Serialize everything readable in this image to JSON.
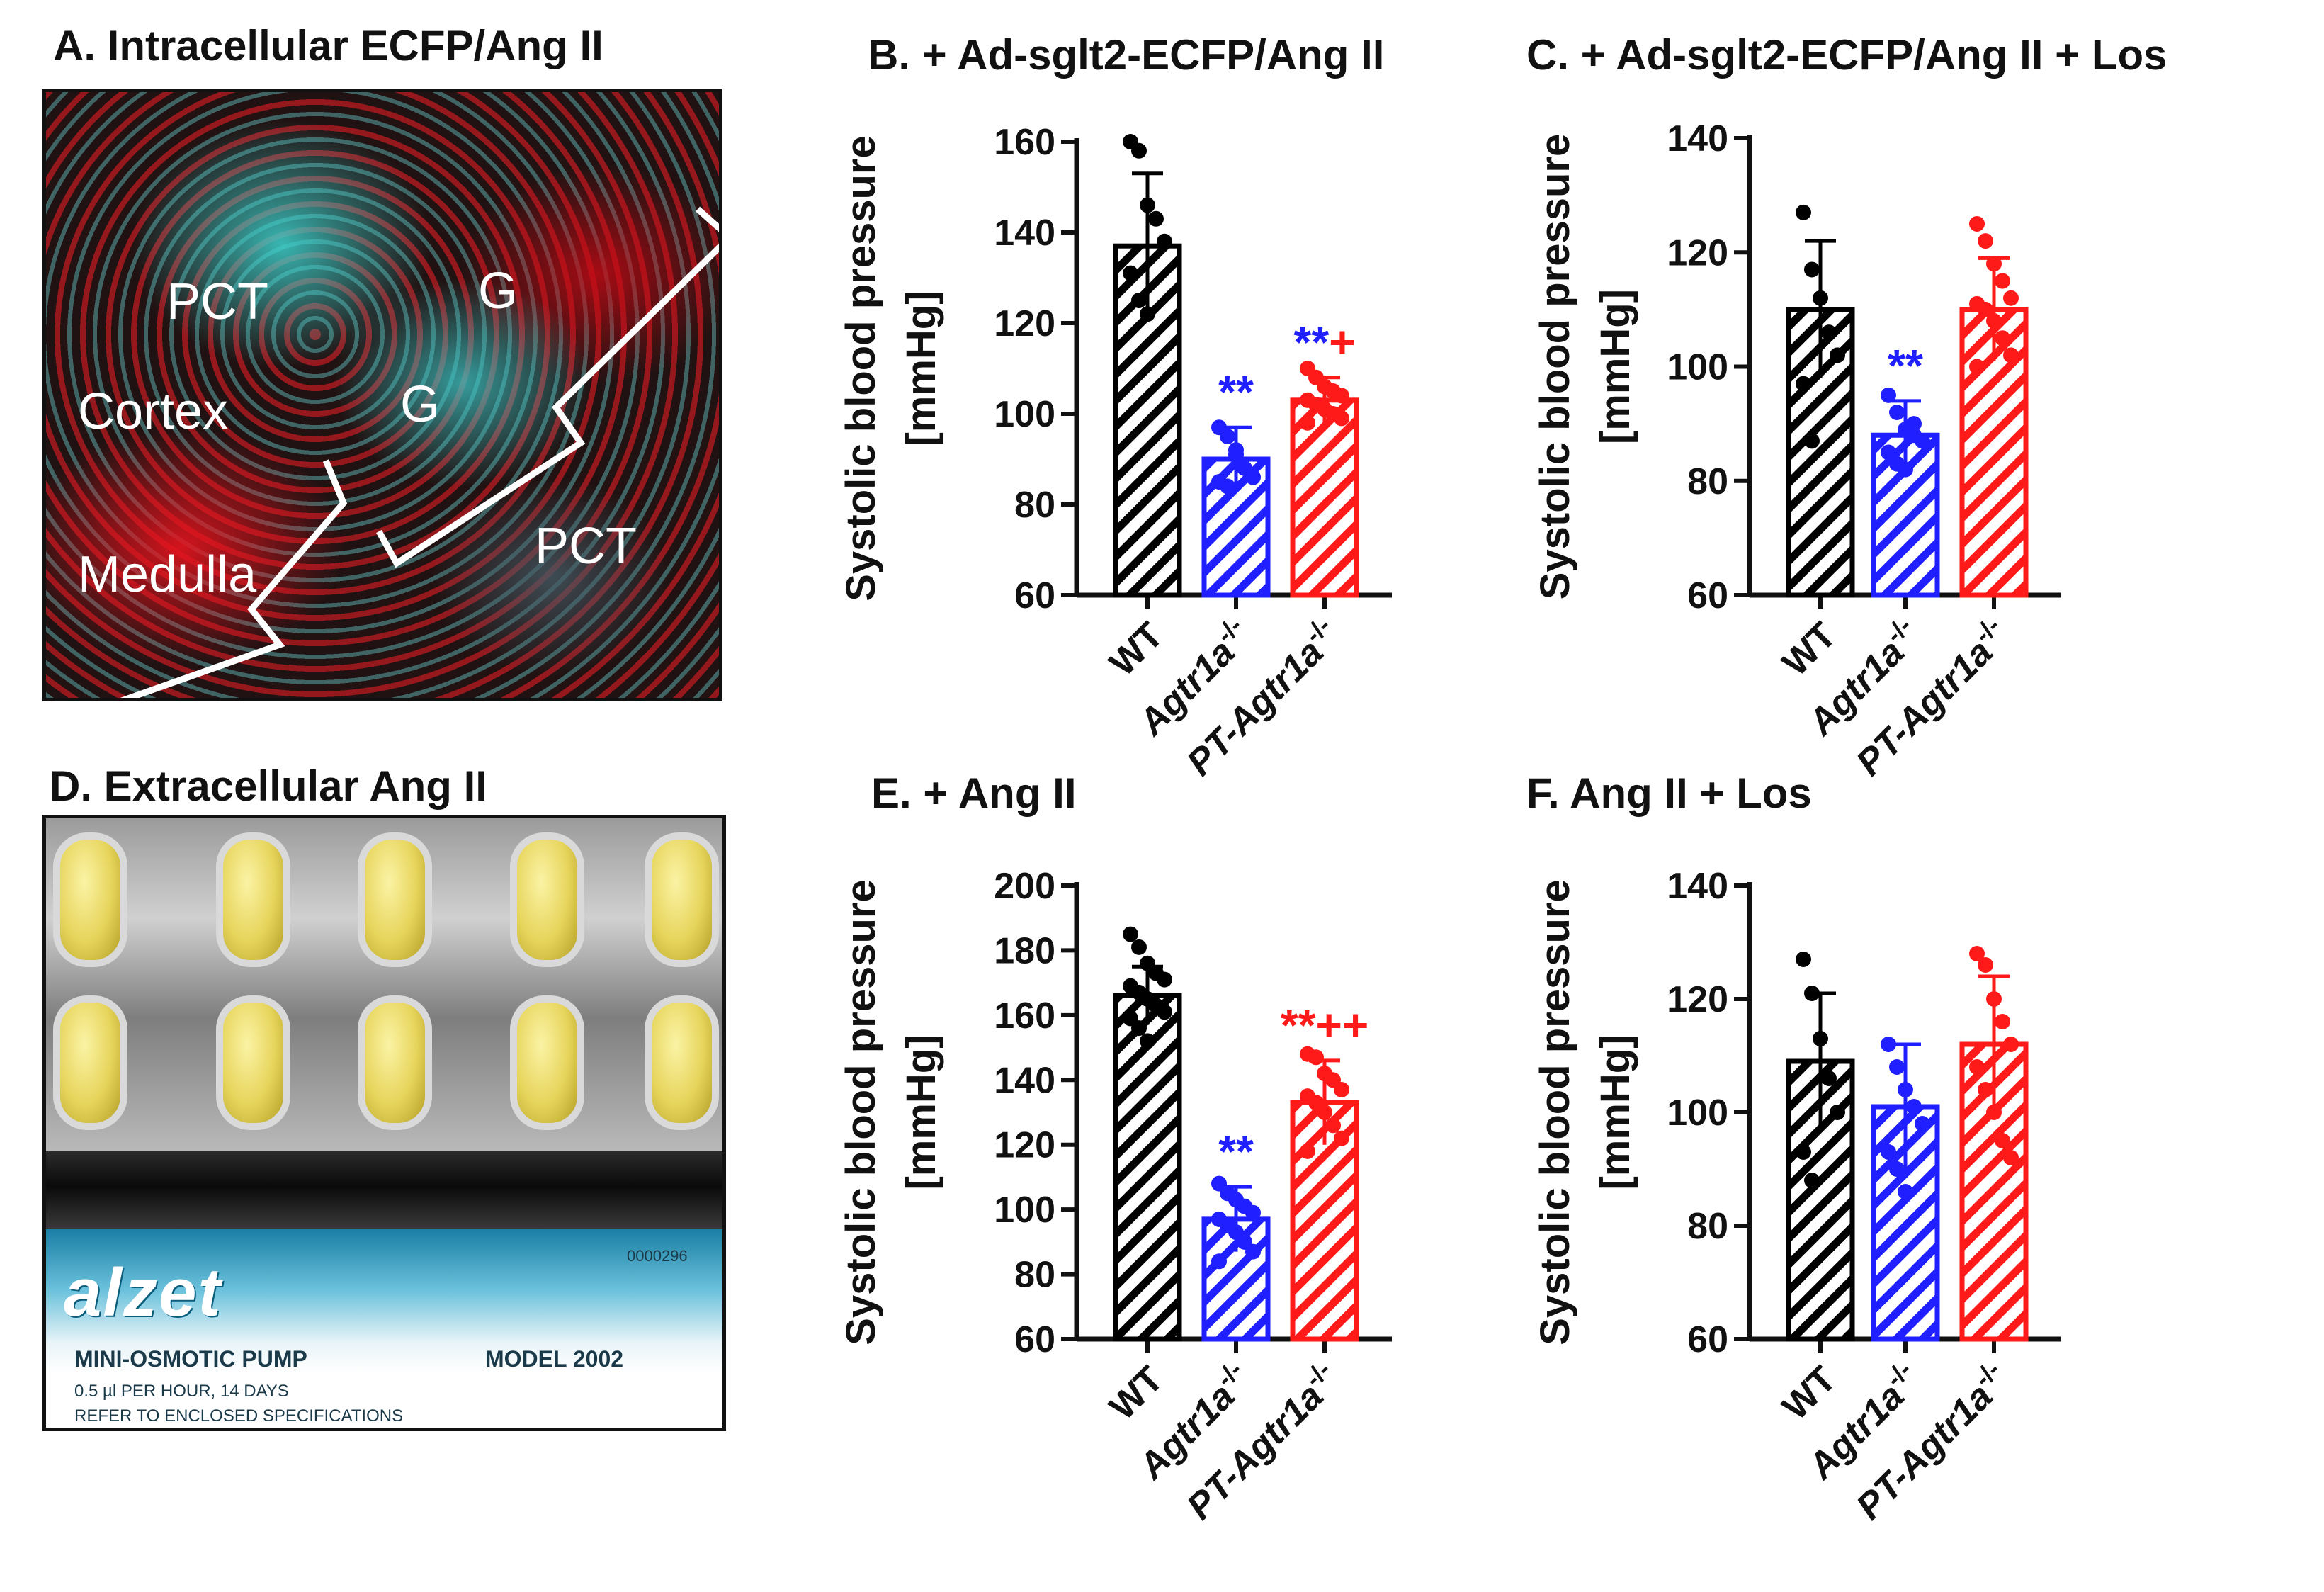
{
  "panels": {
    "a": {
      "title": "A. Intracellular ECFP/Ang II",
      "labels": [
        "PCT",
        "G",
        "Cortex",
        "G",
        "Medulla",
        "PCT"
      ]
    },
    "d": {
      "title": "D. Extracellular Ang II",
      "box": {
        "brand": "alzet",
        "serial": "0000296",
        "product": "MINI-OSMOTIC PUMP",
        "model": "MODEL 2002",
        "rate": "0.5 µl PER HOUR, 14 DAYS",
        "note": "REFER TO ENCLOSED SPECIFICATIONS"
      }
    }
  },
  "colors": {
    "wt": "#000000",
    "agtr1a": "#1f1fff",
    "pt": "#ff1a1a"
  },
  "chart_data": [
    {
      "id": "B",
      "type": "bar",
      "title": "B. + Ad-sglt2-ECFP/Ang II",
      "ylabel": "Systolic blood pressure",
      "ylabel_unit": "[mmHg]",
      "ylim": [
        60,
        160
      ],
      "yticks": [
        "60",
        "80",
        "100",
        "120",
        "140",
        "160"
      ],
      "categories": [
        {
          "prefix": "WT",
          "sup": ""
        },
        {
          "prefix": "Agtr1a",
          "sup": "-/-"
        },
        {
          "prefix": "PT-Agtr1a",
          "sup": "-/-"
        }
      ],
      "values": [
        137,
        90,
        103
      ],
      "sd": [
        16,
        7,
        5
      ],
      "points": [
        [
          160,
          158,
          146,
          143,
          138,
          131,
          125,
          122
        ],
        [
          97,
          95,
          91,
          88,
          86,
          85,
          84,
          92
        ],
        [
          110,
          108,
          106,
          105,
          104,
          103,
          102,
          101,
          100,
          99,
          98
        ]
      ],
      "annotations": [
        {
          "bar": 1,
          "segments": [
            {
              "text": "**",
              "color": "#1f1fff"
            }
          ]
        },
        {
          "bar": 2,
          "segments": [
            {
              "text": "**",
              "color": "#1f1fff"
            },
            {
              "text": "+",
              "color": "#ff1a1a"
            }
          ]
        }
      ]
    },
    {
      "id": "C",
      "type": "bar",
      "title": "C. + Ad-sglt2-ECFP/Ang II + Los",
      "ylabel": "Systolic blood pressure",
      "ylabel_unit": "[mmHg]",
      "ylim": [
        60,
        140
      ],
      "yticks": [
        "60",
        "80",
        "100",
        "120",
        "140"
      ],
      "categories": [
        {
          "prefix": "WT",
          "sup": ""
        },
        {
          "prefix": "Agtr1a",
          "sup": "-/-"
        },
        {
          "prefix": "PT-Agtr1a",
          "sup": "-/-"
        }
      ],
      "values": [
        110,
        88,
        110
      ],
      "sd": [
        12,
        6,
        9
      ],
      "points": [
        [
          127,
          117,
          112,
          106,
          102,
          97,
          87
        ],
        [
          95,
          92,
          89,
          88,
          87,
          85,
          83,
          82,
          90
        ],
        [
          125,
          122,
          118,
          115,
          112,
          111,
          110,
          108,
          105,
          102,
          100
        ]
      ],
      "annotations": [
        {
          "bar": 1,
          "segments": [
            {
              "text": "**",
              "color": "#1f1fff"
            }
          ]
        }
      ]
    },
    {
      "id": "E",
      "type": "bar",
      "title": "E. + Ang II",
      "ylabel": "Systolic blood pressure",
      "ylabel_unit": "[mmHg]",
      "ylim": [
        60,
        200
      ],
      "yticks": [
        "60",
        "80",
        "100",
        "120",
        "140",
        "160",
        "180",
        "200"
      ],
      "categories": [
        {
          "prefix": "WT",
          "sup": ""
        },
        {
          "prefix": "Agtr1a",
          "sup": "-/-"
        },
        {
          "prefix": "PT-Agtr1a",
          "sup": "-/-"
        }
      ],
      "values": [
        166,
        97,
        133
      ],
      "sd": [
        9,
        10,
        13
      ],
      "points": [
        [
          185,
          181,
          176,
          173,
          171,
          169,
          167,
          165,
          163,
          161,
          159,
          156,
          152
        ],
        [
          108,
          105,
          103,
          101,
          99,
          97,
          95,
          93,
          90,
          87,
          84
        ],
        [
          148,
          147,
          142,
          140,
          137,
          135,
          133,
          130,
          126,
          122,
          118
        ]
      ],
      "annotations": [
        {
          "bar": 1,
          "segments": [
            {
              "text": "**",
              "color": "#1f1fff"
            }
          ]
        },
        {
          "bar": 2,
          "segments": [
            {
              "text": "**++",
              "color": "#ff1a1a"
            }
          ]
        }
      ]
    },
    {
      "id": "F",
      "type": "bar",
      "title": "F. Ang II + Los",
      "ylabel": "Systolic blood pressure",
      "ylabel_unit": "[mmHg]",
      "ylim": [
        60,
        140
      ],
      "yticks": [
        "60",
        "80",
        "100",
        "120",
        "140"
      ],
      "categories": [
        {
          "prefix": "WT",
          "sup": ""
        },
        {
          "prefix": "Agtr1a",
          "sup": "-/-"
        },
        {
          "prefix": "PT-Agtr1a",
          "sup": "-/-"
        }
      ],
      "values": [
        109,
        101,
        112
      ],
      "sd": [
        12,
        11,
        12
      ],
      "points": [
        [
          127,
          121,
          113,
          106,
          100,
          93,
          88
        ],
        [
          112,
          108,
          104,
          101,
          98,
          93,
          90,
          86
        ],
        [
          128,
          126,
          120,
          116,
          112,
          108,
          104,
          100,
          95,
          92
        ]
      ],
      "annotations": []
    }
  ]
}
